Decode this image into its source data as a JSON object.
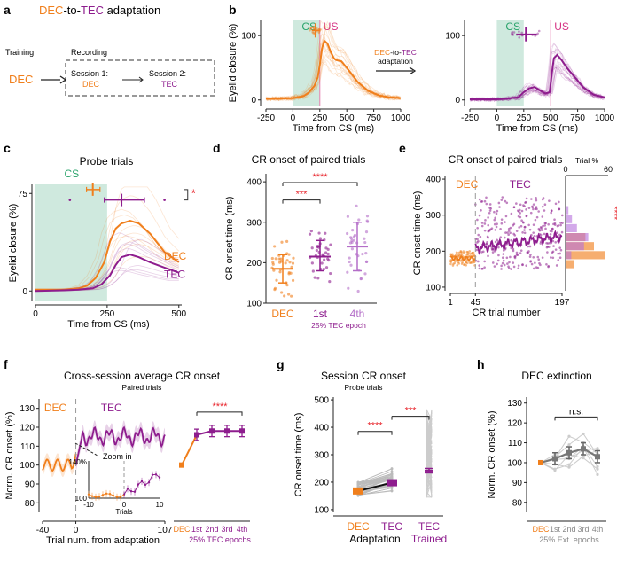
{
  "colors": {
    "dec": "#f07f1c",
    "tec": "#8e1d8e",
    "cs": "#cfe9de",
    "sig": "#e8262d",
    "grey": "#888888",
    "dark": "#222222",
    "light": "#cccccc"
  },
  "panels": {
    "a": {
      "letter": "a",
      "title_dec": "DEC",
      "title_mid": "-to-",
      "title_tec": "TEC",
      "title_end": " adaptation",
      "training": "Training",
      "recording": "Recording",
      "dec_label": "DEC",
      "session1": "Session 1:",
      "session1_sub": "DEC",
      "session2": "Session 2:",
      "session2_sub": "TEC"
    },
    "b": {
      "letter": "b",
      "cs": "CS",
      "us": "US",
      "adapt_dec": "DEC",
      "adapt_mid": "-to-",
      "adapt_tec": "TEC",
      "adapt_line2": "adaptation"
    },
    "c": {
      "letter": "c",
      "title": "Probe trials",
      "cs": "CS",
      "sig": "*",
      "dec": "DEC",
      "tec": "TEC"
    },
    "d": {
      "letter": "d",
      "title": "CR onset of paired trials",
      "sig_top": "****",
      "sig_bottom": "***",
      "epoch": "25% TEC epoch"
    },
    "e": {
      "letter": "e",
      "title": "CR onset of paired trials",
      "dec": "DEC",
      "tec": "TEC",
      "trial_pct": "Trial %",
      "hist_ticks": [
        "0",
        "60"
      ],
      "sig": "****"
    },
    "f": {
      "letter": "f",
      "title": "Cross-session average CR onset",
      "subtitle": "Paired trials",
      "dec": "DEC",
      "tec": "TEC",
      "zoom": "Zoom in",
      "inset_ylabel": "140%",
      "inset_y100": "100",
      "inset_xlabel": "Trials",
      "inset_xticks": [
        "-10",
        "0",
        "10"
      ],
      "sig": "****",
      "epochs_label": "25% TEC epochs"
    },
    "g": {
      "letter": "g",
      "title": "Session CR onset",
      "subtitle": "Probe trials",
      "sig1": "****",
      "sig2": "***",
      "adaptation": "Adaptation",
      "trained": "Trained"
    },
    "h": {
      "letter": "h",
      "title": "DEC extinction",
      "sig": "n.s.",
      "epochs_label": "25% Ext. epochs"
    }
  },
  "chart_data": [
    {
      "panel": "b-left",
      "type": "line",
      "xlabel": "Time from CS (ms)",
      "ylabel": "Eyelid closure (%)",
      "xticks": [
        -250,
        0,
        250,
        500,
        750,
        1000
      ],
      "yticks": [
        0,
        100
      ],
      "xlim": [
        -250,
        1000
      ],
      "ylim": [
        -10,
        125
      ],
      "cs_window": [
        0,
        250
      ],
      "us_time": 250,
      "series": [
        {
          "name": "DEC",
          "x": [
            -250,
            -100,
            0,
            100,
            150,
            200,
            230,
            250,
            270,
            290,
            320,
            350,
            380,
            400,
            450,
            500,
            600,
            700,
            800,
            900,
            1000
          ],
          "y": [
            2,
            2,
            3,
            6,
            12,
            22,
            35,
            55,
            80,
            92,
            88,
            75,
            65,
            62,
            60,
            50,
            28,
            14,
            7,
            4,
            3
          ]
        }
      ],
      "onset_marker": {
        "y": 108,
        "center": 210,
        "range": [
          175,
          250
        ]
      }
    },
    {
      "panel": "b-right",
      "type": "line",
      "xlabel": "Time from CS (ms)",
      "xticks": [
        -250,
        0,
        250,
        500,
        750,
        1000
      ],
      "yticks": [
        0,
        100
      ],
      "xlim": [
        -250,
        1000
      ],
      "ylim": [
        -10,
        125
      ],
      "cs_window": [
        0,
        250
      ],
      "us_time": 500,
      "series": [
        {
          "name": "TEC",
          "x": [
            -250,
            -100,
            0,
            100,
            200,
            250,
            300,
            350,
            400,
            450,
            490,
            510,
            530,
            560,
            600,
            650,
            700,
            800,
            900,
            1000
          ],
          "y": [
            1,
            1,
            1,
            2,
            4,
            12,
            18,
            20,
            15,
            10,
            12,
            40,
            65,
            70,
            62,
            50,
            40,
            20,
            8,
            4
          ],
          "color_key": "tec"
        }
      ],
      "onset_marker": {
        "y": 102,
        "center": 270,
        "range": [
          180,
          370
        ]
      }
    },
    {
      "panel": "c",
      "type": "line",
      "xlabel": "Time from CS (ms)",
      "ylabel": "Eyelid closure (%)",
      "xticks": [
        0,
        250,
        500
      ],
      "yticks": [
        0,
        75
      ],
      "xlim": [
        0,
        510
      ],
      "ylim": [
        -8,
        82
      ],
      "cs_window": [
        0,
        250
      ],
      "series": [
        {
          "name": "DEC",
          "x": [
            0,
            100,
            150,
            180,
            210,
            240,
            260,
            280,
            300,
            330,
            360,
            400,
            450,
            500
          ],
          "y": [
            1,
            1,
            2,
            4,
            10,
            22,
            38,
            48,
            52,
            54,
            52,
            44,
            30,
            22
          ]
        },
        {
          "name": "TEC",
          "x": [
            0,
            100,
            150,
            200,
            230,
            260,
            280,
            300,
            330,
            360,
            400,
            450,
            500
          ],
          "y": [
            0,
            0.5,
            1,
            2,
            5,
            12,
            20,
            26,
            28,
            26,
            22,
            18,
            14
          ]
        }
      ],
      "onset_markers": [
        {
          "name": "DEC",
          "y": 78,
          "center": 200,
          "range": [
            178,
            225
          ]
        },
        {
          "name": "TEC",
          "y": 70,
          "center": 300,
          "range": [
            240,
            380
          ]
        }
      ]
    },
    {
      "panel": "d",
      "type": "scatter",
      "ylabel": "CR onset time (ms)",
      "categories": [
        "DEC",
        "1st",
        "4th"
      ],
      "yticks": [
        100,
        200,
        300,
        400
      ],
      "ylim": [
        100,
        420
      ],
      "means": [
        185,
        215,
        240
      ],
      "sd": [
        [
          150,
          220
        ],
        [
          180,
          255
        ],
        [
          180,
          300
        ]
      ]
    },
    {
      "panel": "e",
      "type": "scatter",
      "xlabel": "CR trial number",
      "ylabel": "CR onset time (ms)",
      "xticks": [
        1,
        45,
        197
      ],
      "yticks": [
        100,
        200,
        300,
        400
      ],
      "ylim": [
        90,
        410
      ],
      "xlim": [
        1,
        197
      ],
      "dec_end": 45,
      "histogram": {
        "bins": [
          150,
          175,
          200,
          225,
          250,
          275,
          300
        ],
        "dec": [
          12,
          55,
          40,
          28,
          0,
          0,
          0
        ],
        "tec": [
          0,
          8,
          26,
          32,
          16,
          9,
          4
        ]
      }
    },
    {
      "panel": "f",
      "type": "line",
      "xlabel": "Trial num. from adaptation",
      "ylabel": "Norm. CR onset (%)",
      "xticks": [
        -40,
        0,
        107
      ],
      "yticks": [
        80,
        90,
        100,
        110,
        120,
        130
      ],
      "ylim": [
        75,
        135
      ],
      "epoch_categories": [
        "DEC",
        "1st",
        "2nd",
        "3rd",
        "4th"
      ],
      "epoch_means": [
        100,
        116,
        118,
        118,
        118
      ]
    },
    {
      "panel": "g",
      "type": "scatter",
      "ylabel": "CR onset time (ms)",
      "categories": [
        "DEC",
        "TEC",
        "TEC"
      ],
      "yticks": [
        100,
        200,
        300,
        400,
        500
      ],
      "ylim": [
        90,
        510
      ],
      "means": [
        168,
        198,
        242
      ]
    },
    {
      "panel": "h",
      "type": "line",
      "ylabel": "Norm. CR onset (%)",
      "categories": [
        "DEC",
        "1st",
        "2nd",
        "3rd",
        "4th"
      ],
      "yticks": [
        80,
        90,
        100,
        110,
        120,
        130
      ],
      "ylim": [
        75,
        133
      ],
      "means": [
        100,
        102,
        105,
        107,
        103
      ]
    }
  ]
}
